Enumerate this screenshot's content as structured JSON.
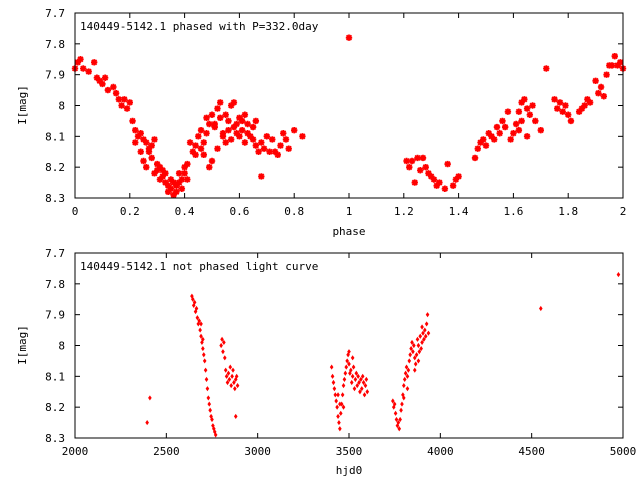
{
  "chart_data": [
    {
      "type": "scatter",
      "title": "140449-5142.1 phased with P=332.0day",
      "xlabel": "phase",
      "ylabel": "I[mag]",
      "xlim": [
        0,
        2
      ],
      "ylim": [
        8.3,
        7.7
      ],
      "y_inverted": true,
      "grid": false,
      "marker": "star",
      "series_color": "#ff0000",
      "x_ticks": [
        "0",
        "0.2",
        "0.4",
        "0.6",
        "0.8",
        "1",
        "1.2",
        "1.4",
        "1.6",
        "1.8",
        "2"
      ],
      "y_ticks": [
        "7.7",
        "7.8",
        "7.9",
        "8",
        "8.1",
        "8.2",
        "8.3"
      ],
      "points": [
        [
          0.0,
          7.88
        ],
        [
          0.01,
          7.86
        ],
        [
          0.02,
          7.85
        ],
        [
          0.03,
          7.88
        ],
        [
          0.05,
          7.89
        ],
        [
          0.07,
          7.86
        ],
        [
          0.08,
          7.91
        ],
        [
          0.09,
          7.92
        ],
        [
          0.1,
          7.93
        ],
        [
          0.11,
          7.91
        ],
        [
          0.12,
          7.95
        ],
        [
          0.14,
          7.94
        ],
        [
          0.15,
          7.96
        ],
        [
          0.16,
          7.98
        ],
        [
          0.17,
          8.0
        ],
        [
          0.18,
          7.98
        ],
        [
          0.19,
          8.01
        ],
        [
          0.2,
          7.99
        ],
        [
          0.21,
          8.05
        ],
        [
          0.22,
          8.08
        ],
        [
          0.22,
          8.12
        ],
        [
          0.23,
          8.1
        ],
        [
          0.24,
          8.15
        ],
        [
          0.24,
          8.09
        ],
        [
          0.25,
          8.18
        ],
        [
          0.25,
          8.11
        ],
        [
          0.26,
          8.12
        ],
        [
          0.26,
          8.2
        ],
        [
          0.27,
          8.14
        ],
        [
          0.27,
          8.15
        ],
        [
          0.28,
          8.17
        ],
        [
          0.28,
          8.13
        ],
        [
          0.29,
          8.11
        ],
        [
          0.29,
          8.22
        ],
        [
          0.3,
          8.19
        ],
        [
          0.3,
          8.21
        ],
        [
          0.31,
          8.2
        ],
        [
          0.31,
          8.24
        ],
        [
          0.32,
          8.23
        ],
        [
          0.32,
          8.21
        ],
        [
          0.33,
          8.22
        ],
        [
          0.33,
          8.25
        ],
        [
          0.34,
          8.26
        ],
        [
          0.34,
          8.28
        ],
        [
          0.35,
          8.24
        ],
        [
          0.35,
          8.27
        ],
        [
          0.36,
          8.25
        ],
        [
          0.36,
          8.29
        ],
        [
          0.37,
          8.28
        ],
        [
          0.37,
          8.26
        ],
        [
          0.38,
          8.25
        ],
        [
          0.38,
          8.22
        ],
        [
          0.39,
          8.27
        ],
        [
          0.39,
          8.24
        ],
        [
          0.4,
          8.22
        ],
        [
          0.4,
          8.2
        ],
        [
          0.41,
          8.24
        ],
        [
          0.41,
          8.19
        ],
        [
          0.42,
          8.12
        ],
        [
          0.43,
          8.15
        ],
        [
          0.44,
          8.13
        ],
        [
          0.44,
          8.16
        ],
        [
          0.45,
          8.1
        ],
        [
          0.46,
          8.08
        ],
        [
          0.46,
          8.14
        ],
        [
          0.47,
          8.12
        ],
        [
          0.47,
          8.16
        ],
        [
          0.48,
          8.04
        ],
        [
          0.48,
          8.09
        ],
        [
          0.49,
          8.06
        ],
        [
          0.49,
          8.2
        ],
        [
          0.5,
          8.18
        ],
        [
          0.5,
          8.03
        ],
        [
          0.51,
          8.06
        ],
        [
          0.51,
          8.07
        ],
        [
          0.52,
          8.01
        ],
        [
          0.52,
          8.14
        ],
        [
          0.53,
          7.99
        ],
        [
          0.53,
          8.04
        ],
        [
          0.54,
          8.1
        ],
        [
          0.54,
          8.09
        ],
        [
          0.55,
          8.03
        ],
        [
          0.55,
          8.12
        ],
        [
          0.56,
          8.05
        ],
        [
          0.56,
          8.08
        ],
        [
          0.57,
          8.0
        ],
        [
          0.57,
          8.11
        ],
        [
          0.58,
          8.07
        ],
        [
          0.58,
          7.99
        ],
        [
          0.59,
          8.09
        ],
        [
          0.59,
          8.06
        ],
        [
          0.6,
          8.04
        ],
        [
          0.6,
          8.1
        ],
        [
          0.61,
          8.08
        ],
        [
          0.61,
          8.05
        ],
        [
          0.62,
          8.12
        ],
        [
          0.62,
          8.03
        ],
        [
          0.63,
          8.09
        ],
        [
          0.63,
          8.06
        ],
        [
          0.64,
          8.1
        ],
        [
          0.65,
          8.11
        ],
        [
          0.65,
          8.07
        ],
        [
          0.66,
          8.05
        ],
        [
          0.66,
          8.13
        ],
        [
          0.67,
          8.15
        ],
        [
          0.68,
          8.12
        ],
        [
          0.68,
          8.23
        ],
        [
          0.69,
          8.14
        ],
        [
          0.7,
          8.1
        ],
        [
          0.71,
          8.15
        ],
        [
          0.72,
          8.11
        ],
        [
          0.73,
          8.15
        ],
        [
          0.74,
          8.16
        ],
        [
          0.75,
          8.13
        ],
        [
          0.76,
          8.09
        ],
        [
          0.77,
          8.11
        ],
        [
          0.78,
          8.14
        ],
        [
          0.8,
          8.08
        ],
        [
          0.83,
          8.1
        ],
        [
          1.0,
          7.78
        ],
        [
          1.21,
          8.18
        ],
        [
          1.22,
          8.2
        ],
        [
          1.23,
          8.18
        ],
        [
          1.24,
          8.25
        ],
        [
          1.25,
          8.17
        ],
        [
          1.26,
          8.21
        ],
        [
          1.27,
          8.17
        ],
        [
          1.28,
          8.2
        ],
        [
          1.29,
          8.22
        ],
        [
          1.3,
          8.23
        ],
        [
          1.31,
          8.24
        ],
        [
          1.32,
          8.26
        ],
        [
          1.33,
          8.25
        ],
        [
          1.35,
          8.27
        ],
        [
          1.36,
          8.19
        ],
        [
          1.38,
          8.26
        ],
        [
          1.39,
          8.24
        ],
        [
          1.4,
          8.23
        ],
        [
          1.46,
          8.17
        ],
        [
          1.47,
          8.14
        ],
        [
          1.48,
          8.12
        ],
        [
          1.49,
          8.11
        ],
        [
          1.5,
          8.13
        ],
        [
          1.51,
          8.09
        ],
        [
          1.52,
          8.1
        ],
        [
          1.53,
          8.11
        ],
        [
          1.54,
          8.07
        ],
        [
          1.55,
          8.09
        ],
        [
          1.56,
          8.05
        ],
        [
          1.57,
          8.07
        ],
        [
          1.58,
          8.02
        ],
        [
          1.59,
          8.11
        ],
        [
          1.6,
          8.09
        ],
        [
          1.61,
          8.06
        ],
        [
          1.62,
          8.08
        ],
        [
          1.62,
          8.02
        ],
        [
          1.63,
          8.05
        ],
        [
          1.63,
          7.99
        ],
        [
          1.64,
          7.98
        ],
        [
          1.65,
          8.01
        ],
        [
          1.65,
          8.1
        ],
        [
          1.66,
          8.03
        ],
        [
          1.67,
          8.0
        ],
        [
          1.68,
          8.05
        ],
        [
          1.7,
          8.08
        ],
        [
          1.72,
          7.88
        ],
        [
          1.75,
          7.98
        ],
        [
          1.76,
          8.01
        ],
        [
          1.77,
          7.99
        ],
        [
          1.78,
          8.02
        ],
        [
          1.79,
          8.0
        ],
        [
          1.8,
          8.03
        ],
        [
          1.81,
          8.05
        ],
        [
          1.84,
          8.02
        ],
        [
          1.85,
          8.01
        ],
        [
          1.86,
          8.0
        ],
        [
          1.87,
          7.98
        ],
        [
          1.88,
          7.99
        ],
        [
          1.9,
          7.92
        ],
        [
          1.91,
          7.96
        ],
        [
          1.92,
          7.94
        ],
        [
          1.93,
          7.97
        ],
        [
          1.94,
          7.9
        ],
        [
          1.95,
          7.87
        ],
        [
          1.96,
          7.87
        ],
        [
          1.97,
          7.84
        ],
        [
          1.98,
          7.87
        ],
        [
          1.99,
          7.86
        ],
        [
          2.0,
          7.88
        ]
      ]
    },
    {
      "type": "scatter",
      "title": "140449-5142.1 not phased light curve",
      "xlabel": "hjd0",
      "ylabel": "I[mag]",
      "xlim": [
        2000,
        5000
      ],
      "ylim": [
        8.3,
        7.7
      ],
      "y_inverted": true,
      "grid": false,
      "marker": "diamond",
      "series_color": "#ff0000",
      "x_ticks": [
        "2000",
        "2500",
        "3000",
        "3500",
        "4000",
        "4500",
        "5000"
      ],
      "y_ticks": [
        "7.7",
        "7.8",
        "7.9",
        "8",
        "8.1",
        "8.2",
        "8.3"
      ],
      "points": [
        [
          2395,
          8.25
        ],
        [
          2410,
          8.17
        ],
        [
          2640,
          7.84
        ],
        [
          2645,
          7.85
        ],
        [
          2650,
          7.87
        ],
        [
          2655,
          7.86
        ],
        [
          2660,
          7.89
        ],
        [
          2665,
          7.88
        ],
        [
          2670,
          7.91
        ],
        [
          2675,
          7.93
        ],
        [
          2680,
          7.92
        ],
        [
          2685,
          7.95
        ],
        [
          2690,
          7.97
        ],
        [
          2695,
          7.99
        ],
        [
          2700,
          8.01
        ],
        [
          2705,
          8.03
        ],
        [
          2710,
          8.05
        ],
        [
          2715,
          8.08
        ],
        [
          2720,
          8.11
        ],
        [
          2725,
          8.14
        ],
        [
          2730,
          8.17
        ],
        [
          2735,
          8.19
        ],
        [
          2740,
          8.21
        ],
        [
          2745,
          8.23
        ],
        [
          2750,
          8.24
        ],
        [
          2755,
          8.26
        ],
        [
          2760,
          8.27
        ],
        [
          2765,
          8.28
        ],
        [
          2770,
          8.29
        ],
        [
          2700,
          7.98
        ],
        [
          2690,
          7.93
        ],
        [
          2800,
          8.0
        ],
        [
          2805,
          7.98
        ],
        [
          2810,
          8.02
        ],
        [
          2815,
          7.99
        ],
        [
          2820,
          8.04
        ],
        [
          2825,
          8.08
        ],
        [
          2830,
          8.1
        ],
        [
          2835,
          8.12
        ],
        [
          2840,
          8.09
        ],
        [
          2845,
          8.11
        ],
        [
          2850,
          8.07
        ],
        [
          2855,
          8.13
        ],
        [
          2860,
          8.1
        ],
        [
          2865,
          8.08
        ],
        [
          2870,
          8.12
        ],
        [
          2875,
          8.14
        ],
        [
          2880,
          8.11
        ],
        [
          2885,
          8.1
        ],
        [
          2890,
          8.13
        ],
        [
          2880,
          8.23
        ],
        [
          3405,
          8.07
        ],
        [
          3410,
          8.1
        ],
        [
          3415,
          8.12
        ],
        [
          3420,
          8.14
        ],
        [
          3425,
          8.16
        ],
        [
          3430,
          8.18
        ],
        [
          3435,
          8.2
        ],
        [
          3440,
          8.23
        ],
        [
          3445,
          8.25
        ],
        [
          3450,
          8.27
        ],
        [
          3455,
          8.22
        ],
        [
          3460,
          8.19
        ],
        [
          3465,
          8.16
        ],
        [
          3470,
          8.13
        ],
        [
          3475,
          8.11
        ],
        [
          3480,
          8.09
        ],
        [
          3485,
          8.07
        ],
        [
          3490,
          8.05
        ],
        [
          3495,
          8.03
        ],
        [
          3500,
          8.06
        ],
        [
          3505,
          8.09
        ],
        [
          3510,
          8.08
        ],
        [
          3515,
          8.12
        ],
        [
          3520,
          8.1
        ],
        [
          3525,
          8.07
        ],
        [
          3530,
          8.14
        ],
        [
          3535,
          8.11
        ],
        [
          3540,
          8.09
        ],
        [
          3545,
          8.13
        ],
        [
          3550,
          8.1
        ],
        [
          3555,
          8.12
        ],
        [
          3560,
          8.15
        ],
        [
          3565,
          8.11
        ],
        [
          3570,
          8.14
        ],
        [
          3575,
          8.1
        ],
        [
          3580,
          8.12
        ],
        [
          3585,
          8.16
        ],
        [
          3590,
          8.13
        ],
        [
          3595,
          8.11
        ],
        [
          3600,
          8.15
        ],
        [
          3440,
          8.16
        ],
        [
          3450,
          8.19
        ],
        [
          3470,
          8.2
        ],
        [
          3500,
          8.02
        ],
        [
          3520,
          8.04
        ],
        [
          3740,
          8.18
        ],
        [
          3745,
          8.2
        ],
        [
          3750,
          8.19
        ],
        [
          3755,
          8.22
        ],
        [
          3760,
          8.24
        ],
        [
          3765,
          8.26
        ],
        [
          3770,
          8.25
        ],
        [
          3775,
          8.27
        ],
        [
          3780,
          8.24
        ],
        [
          3785,
          8.21
        ],
        [
          3790,
          8.19
        ],
        [
          3795,
          8.16
        ],
        [
          3800,
          8.13
        ],
        [
          3805,
          8.11
        ],
        [
          3810,
          8.09
        ],
        [
          3815,
          8.07
        ],
        [
          3820,
          8.1
        ],
        [
          3825,
          8.08
        ],
        [
          3830,
          8.05
        ],
        [
          3835,
          8.03
        ],
        [
          3840,
          8.01
        ],
        [
          3845,
          7.99
        ],
        [
          3850,
          8.02
        ],
        [
          3855,
          8.0
        ],
        [
          3860,
          8.04
        ],
        [
          3865,
          8.06
        ],
        [
          3870,
          8.03
        ],
        [
          3875,
          7.98
        ],
        [
          3880,
          8.0
        ],
        [
          3885,
          8.02
        ],
        [
          3890,
          7.97
        ],
        [
          3895,
          8.01
        ],
        [
          3900,
          7.99
        ],
        [
          3905,
          7.96
        ],
        [
          3910,
          7.98
        ],
        [
          3915,
          7.95
        ],
        [
          3920,
          7.97
        ],
        [
          3925,
          7.93
        ],
        [
          3930,
          7.9
        ],
        [
          3935,
          7.96
        ],
        [
          3800,
          8.17
        ],
        [
          3820,
          8.14
        ],
        [
          3860,
          8.08
        ],
        [
          3880,
          8.05
        ],
        [
          3900,
          7.94
        ],
        [
          4550,
          7.88
        ],
        [
          4975,
          7.77
        ]
      ]
    }
  ]
}
